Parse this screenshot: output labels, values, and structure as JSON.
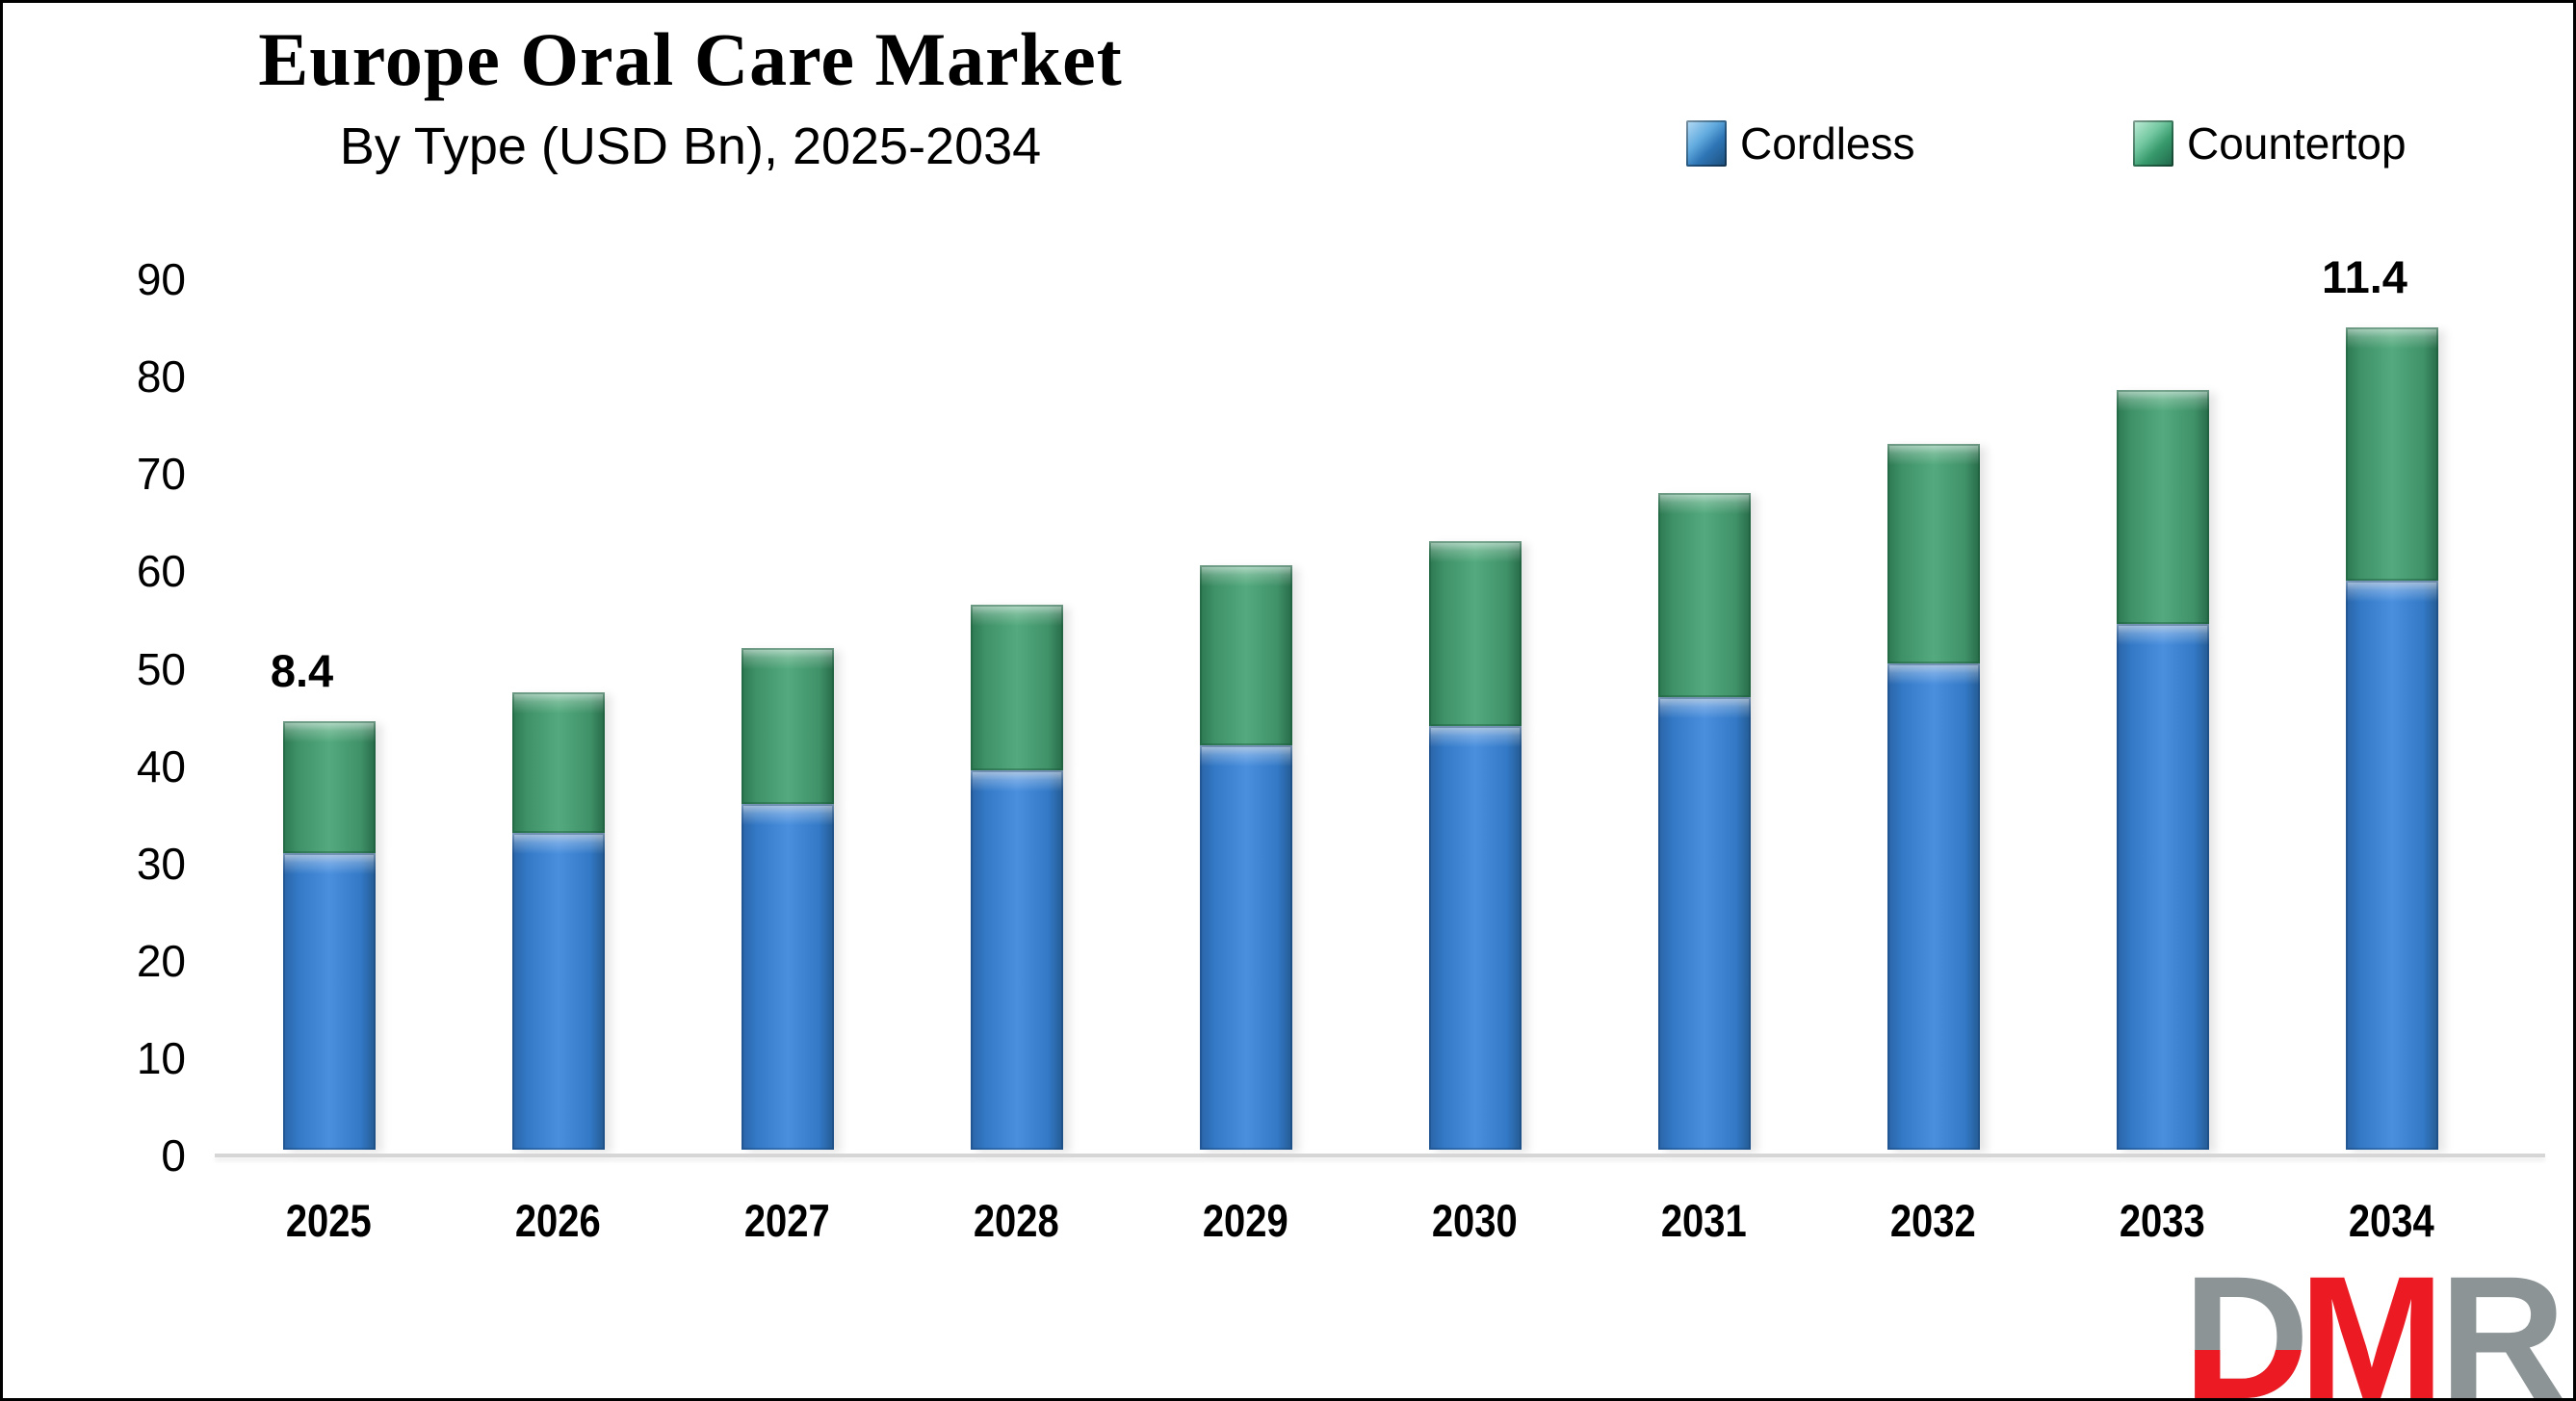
{
  "header": {
    "title": "Europe Oral Care Market",
    "subtitle": "By Type (USD Bn), 2025-2034"
  },
  "legend": {
    "items": [
      {
        "label": "Cordless",
        "color": "#2e75b6"
      },
      {
        "label": "Countertop",
        "color": "#3f9168"
      }
    ]
  },
  "chart_data": {
    "type": "bar",
    "stacked": true,
    "title": "Europe Oral Care Market",
    "subtitle": "By Type (USD Bn), 2025-2034",
    "categories": [
      "2025",
      "2026",
      "2027",
      "2028",
      "2029",
      "2030",
      "2031",
      "2032",
      "2033",
      "2034"
    ],
    "series": [
      {
        "name": "Cordless",
        "color": "#2e75b6",
        "values": [
          30.5,
          32.5,
          35.5,
          39.0,
          41.5,
          43.5,
          46.5,
          50.0,
          54.0,
          58.5
        ]
      },
      {
        "name": "Countertop",
        "color": "#3f9168",
        "values": [
          13.5,
          14.5,
          16.0,
          17.0,
          18.5,
          19.0,
          21.0,
          22.5,
          24.0,
          26.0
        ]
      }
    ],
    "totals": [
      44.0,
      47.0,
      51.5,
      56.0,
      60.0,
      62.5,
      67.5,
      72.5,
      78.0,
      84.5
    ],
    "annotations": [
      {
        "category": "2025",
        "text": "8.4"
      },
      {
        "category": "2034",
        "text": "11.4"
      }
    ],
    "ylim": [
      0,
      90
    ],
    "yticks": [
      90,
      80,
      70,
      60,
      50,
      40,
      30,
      20,
      10,
      0
    ],
    "grid": false,
    "legend_position": "top-right",
    "axis_line_color": "#d6d6d6"
  },
  "logo": {
    "letters": [
      {
        "char": "D",
        "color": "#8c9496"
      },
      {
        "char": "M",
        "color": "#ec1b23"
      },
      {
        "char": "R",
        "color": "#8c9496"
      }
    ],
    "accent_color": "#ec1b23"
  }
}
